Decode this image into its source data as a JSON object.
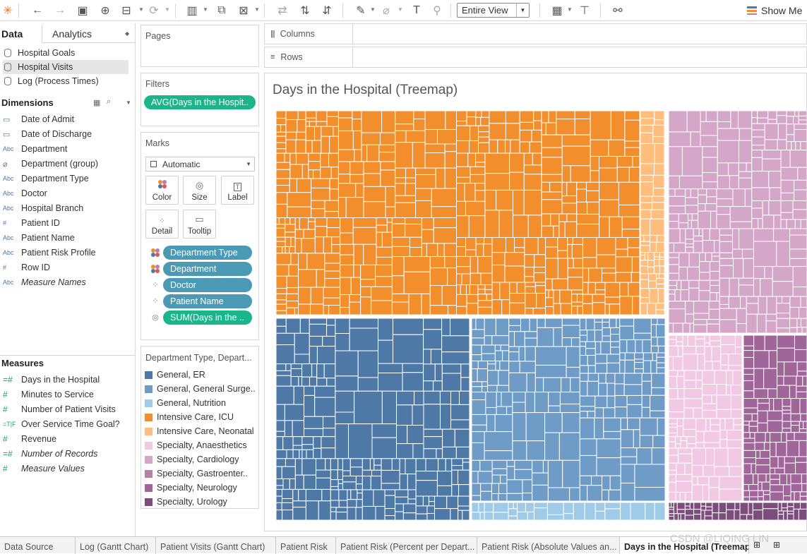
{
  "toolbar": {
    "fit_label": "Entire View",
    "show_me": "Show Me"
  },
  "data_pane": {
    "tab_data": "Data",
    "tab_analytics": "Analytics",
    "data_sources": [
      {
        "label": "Hospital Goals",
        "selected": false
      },
      {
        "label": "Hospital Visits",
        "selected": true
      },
      {
        "label": "Log (Process Times)",
        "selected": false
      }
    ],
    "dimensions_title": "Dimensions",
    "dimensions": [
      {
        "type": "date",
        "label": "Date of Admit"
      },
      {
        "type": "date",
        "label": "Date of Discharge"
      },
      {
        "type": "Abc",
        "label": "Department"
      },
      {
        "type": "group",
        "label": "Department (group)"
      },
      {
        "type": "Abc",
        "label": "Department Type"
      },
      {
        "type": "Abc",
        "label": "Doctor"
      },
      {
        "type": "Abc",
        "label": "Hospital Branch"
      },
      {
        "type": "#",
        "label": "Patient ID"
      },
      {
        "type": "Abc",
        "label": "Patient Name"
      },
      {
        "type": "Abc",
        "label": "Patient Risk Profile"
      },
      {
        "type": "#",
        "label": "Row ID"
      },
      {
        "type": "Abc",
        "label": "Measure Names",
        "italic": true
      }
    ],
    "measures_title": "Measures",
    "measures": [
      {
        "type": "=#",
        "label": "Days in the Hospital"
      },
      {
        "type": "#",
        "label": "Minutes to Service"
      },
      {
        "type": "#",
        "label": "Number of Patient Visits"
      },
      {
        "type": "=T|F",
        "label": "Over Service Time Goal?"
      },
      {
        "type": "#",
        "label": "Revenue"
      },
      {
        "type": "=#",
        "label": "Number of Records",
        "italic": true
      },
      {
        "type": "#",
        "label": "Measure Values",
        "italic": true
      }
    ]
  },
  "pages_card": {
    "title": "Pages"
  },
  "filters_card": {
    "title": "Filters",
    "pill": "AVG(Days in the Hospit.."
  },
  "marks_card": {
    "title": "Marks",
    "mark_type": "Automatic",
    "buttons": [
      "Color",
      "Size",
      "Label",
      "Detail",
      "Tooltip"
    ],
    "pills": [
      {
        "icon": "color",
        "label": "Department Type",
        "color": "blue"
      },
      {
        "icon": "color",
        "label": "Department",
        "color": "blue"
      },
      {
        "icon": "detail",
        "label": "Doctor",
        "color": "blue"
      },
      {
        "icon": "detail",
        "label": "Patient Name",
        "color": "blue"
      },
      {
        "icon": "size",
        "label": "SUM(Days in the ..",
        "color": "green"
      }
    ]
  },
  "legend": {
    "title": "Department Type, Depart...",
    "items": [
      {
        "label": "General, ER",
        "color": "#4e79a7"
      },
      {
        "label": "General, General Surge..",
        "color": "#6f9bc7"
      },
      {
        "label": "General, Nutrition",
        "color": "#a0cbe8"
      },
      {
        "label": "Intensive Care, ICU",
        "color": "#f28e2b"
      },
      {
        "label": "Intensive Care, Neonatal",
        "color": "#ffbe7d"
      },
      {
        "label": "Specialty, Anaesthetics",
        "color": "#f1c9e3"
      },
      {
        "label": "Specialty, Cardiology",
        "color": "#d4a6c8"
      },
      {
        "label": "Specialty, Gastroenter..",
        "color": "#b782a8"
      },
      {
        "label": "Specialty, Neurology",
        "color": "#a0669a"
      },
      {
        "label": "Specialty, Urology",
        "color": "#7c4c7c"
      }
    ]
  },
  "shelves": {
    "columns": "Columns",
    "rows": "Rows"
  },
  "view": {
    "title": "Days in the Hospital (Treemap)"
  },
  "bottom_tabs": [
    {
      "label": "Data Source",
      "active": false
    },
    {
      "label": "Log (Gantt Chart)",
      "active": false
    },
    {
      "label": "Patient Visits (Gantt Chart)",
      "active": false
    },
    {
      "label": "Patient Risk",
      "active": false
    },
    {
      "label": "Patient Risk (Percent per Depart...",
      "active": false
    },
    {
      "label": "Patient Risk (Absolute Values an...",
      "active": false
    },
    {
      "label": "Days in the Hospital (Treemap)",
      "active": true
    }
  ],
  "watermark": "CSDN @LIQING LIN"
}
